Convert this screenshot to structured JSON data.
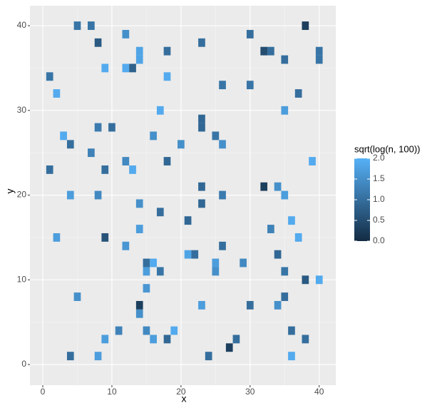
{
  "chart_data": {
    "type": "tile",
    "xlabel": "x",
    "ylabel": "y",
    "xlim": [
      -1.86,
      42.4
    ],
    "ylim": [
      -2.44,
      42.36
    ],
    "xticks": [
      0,
      10,
      20,
      30,
      40
    ],
    "yticks": [
      0,
      10,
      20,
      30,
      40
    ],
    "grid": true,
    "x": [
      5,
      7,
      12,
      30,
      38,
      8,
      23,
      14,
      14,
      18,
      32,
      33,
      35,
      40,
      40,
      9,
      12,
      13,
      18,
      1,
      26,
      30,
      2,
      37,
      17,
      35,
      23,
      23,
      8,
      10,
      3,
      16,
      25,
      4,
      20,
      26,
      7,
      12,
      18,
      39,
      1,
      9,
      13,
      23,
      32,
      34,
      4,
      8,
      26,
      35,
      14,
      23,
      17,
      21,
      36,
      14,
      33,
      2,
      9,
      37,
      12,
      26,
      21,
      22,
      34,
      15,
      16,
      25,
      29,
      15,
      17,
      25,
      35,
      38,
      40,
      15,
      5,
      35,
      14,
      23,
      30,
      34,
      14,
      11,
      15,
      19,
      36,
      9,
      16,
      18,
      28,
      38,
      27,
      4,
      8,
      24,
      36
    ],
    "y": [
      40,
      40,
      39,
      39,
      40,
      38,
      38,
      37,
      36,
      37,
      37,
      37,
      36,
      37,
      36,
      35,
      35,
      35,
      34,
      34,
      33,
      33,
      32,
      32,
      30,
      30,
      29,
      28,
      28,
      28,
      27,
      27,
      27,
      26,
      26,
      26,
      25,
      24,
      24,
      24,
      23,
      23,
      23,
      21,
      21,
      21,
      20,
      20,
      20,
      20,
      19,
      19,
      18,
      17,
      17,
      16,
      16,
      15,
      15,
      15,
      14,
      14,
      13,
      13,
      13,
      12,
      12,
      12,
      12,
      11,
      11,
      11,
      11,
      10,
      10,
      9,
      8,
      8,
      7,
      7,
      7,
      7,
      6,
      4,
      4,
      4,
      4,
      3,
      3,
      3,
      3,
      3,
      2,
      1,
      1,
      1,
      1
    ],
    "values": [
      1.1,
      1.1,
      1.5,
      1.0,
      0.3,
      0.7,
      1.0,
      1.8,
      1.8,
      1.0,
      0.5,
      1.0,
      1.0,
      1.1,
      1.1,
      1.9,
      1.9,
      0.8,
      1.9,
      1.1,
      1.1,
      1.1,
      1.9,
      1.0,
      1.9,
      1.7,
      0.9,
      0.9,
      1.2,
      1.0,
      1.9,
      1.5,
      1.1,
      1.0,
      1.5,
      1.5,
      1.3,
      1.4,
      0.9,
      1.9,
      1.0,
      1.0,
      1.9,
      0.9,
      0.3,
      1.5,
      1.7,
      1.4,
      1.2,
      1.7,
      1.5,
      0.9,
      1.0,
      0.9,
      1.9,
      1.7,
      1.3,
      1.7,
      0.6,
      1.9,
      1.6,
      1.0,
      1.8,
      1.0,
      0.9,
      1.0,
      1.9,
      1.7,
      1.4,
      1.7,
      1.1,
      1.5,
      1.1,
      0.7,
      1.9,
      1.6,
      1.5,
      1.0,
      0.3,
      1.7,
      1.0,
      1.5,
      1.5,
      1.3,
      1.4,
      1.9,
      1.0,
      1.7,
      1.7,
      0.9,
      1.0,
      1.0,
      0.3,
      1.0,
      1.7,
      1.0,
      1.9
    ],
    "legend_title": "sqrt(log(n, 100))",
    "low": "#132B43",
    "high": "#56B1F7",
    "colorlim": [
      0,
      2
    ],
    "colorticks": [
      {
        "value": 0,
        "label": "0.0"
      },
      {
        "value": 0.5,
        "label": "0.5"
      },
      {
        "value": 1,
        "label": "1.0"
      },
      {
        "value": 1.5,
        "label": "1.5"
      },
      {
        "value": 2,
        "label": "2.0"
      }
    ]
  }
}
